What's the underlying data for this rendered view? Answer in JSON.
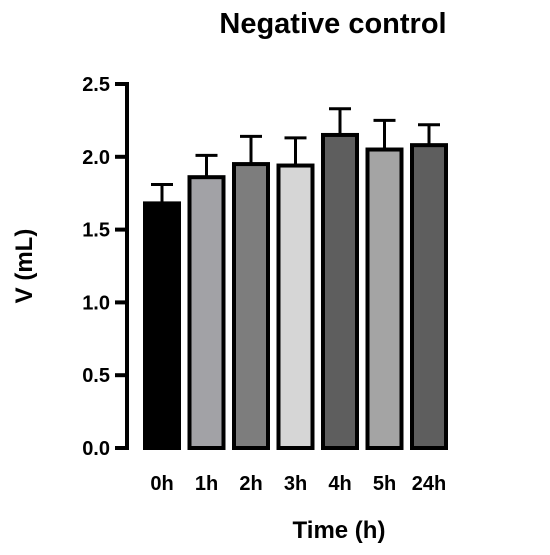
{
  "chart_data": {
    "type": "bar",
    "title": "Negative control",
    "xlabel": "Time (h)",
    "ylabel": "V (mL)",
    "ylim": [
      0,
      2.5
    ],
    "yticks": [
      "0.0",
      "0.5",
      "1.0",
      "1.5",
      "2.0",
      "2.5"
    ],
    "categories": [
      "0h",
      "1h",
      "2h",
      "3h",
      "4h",
      "5h",
      "24h"
    ],
    "values": [
      1.68,
      1.86,
      1.95,
      1.94,
      2.15,
      2.05,
      2.08
    ],
    "error_upper": [
      0.13,
      0.15,
      0.19,
      0.19,
      0.18,
      0.2,
      0.14
    ],
    "bar_colors": [
      "#000000",
      "#a2a2a6",
      "#7d7d7d",
      "#d6d6d6",
      "#5e5e5e",
      "#a4a4a4",
      "#5e5e5e"
    ],
    "grid": false,
    "legend": "none"
  }
}
